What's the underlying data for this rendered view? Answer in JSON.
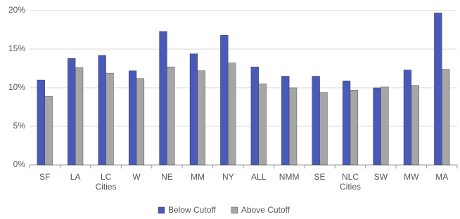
{
  "chart_data": {
    "type": "bar",
    "categories": [
      "SF",
      "LA",
      "LC Cities",
      "W",
      "NE",
      "MM",
      "NY",
      "ALL",
      "NMM",
      "SE",
      "NLC Cities",
      "SW",
      "MW",
      "MA"
    ],
    "series": [
      {
        "name": "Below Cutoff",
        "color": "#4a5ab9",
        "values": [
          11.0,
          13.8,
          14.2,
          12.2,
          17.3,
          14.4,
          16.8,
          12.7,
          11.5,
          11.5,
          10.9,
          10.0,
          12.3,
          19.7
        ]
      },
      {
        "name": "Above Cutoff",
        "color": "#a6a6a6",
        "values": [
          8.9,
          12.6,
          11.9,
          11.2,
          12.7,
          12.2,
          13.2,
          10.5,
          10.0,
          9.4,
          9.7,
          10.1,
          10.3,
          12.4
        ]
      }
    ],
    "ylim": [
      0,
      20
    ],
    "yticks": [
      {
        "value": 0,
        "label": "0%"
      },
      {
        "value": 5,
        "label": "5%"
      },
      {
        "value": 10,
        "label": "10%"
      },
      {
        "value": 15,
        "label": "15%"
      },
      {
        "value": 20,
        "label": "20%"
      }
    ],
    "grid": true,
    "legend": "bottom"
  }
}
